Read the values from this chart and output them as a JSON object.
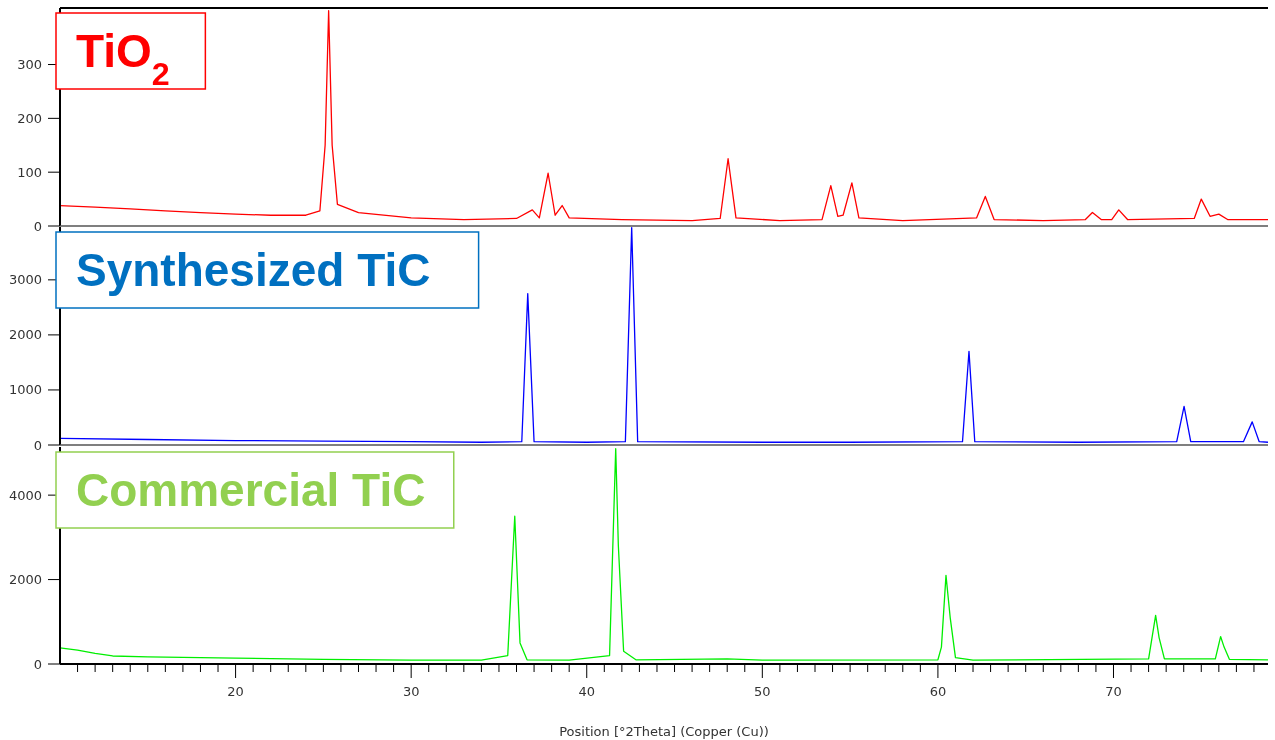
{
  "chart_data": [
    {
      "type": "line",
      "title": "TiO$_{2}$",
      "xlim": [
        10,
        78.8
      ],
      "ylim": [
        0,
        405
      ],
      "yticks": [
        0,
        100,
        200,
        300
      ],
      "grid": false,
      "tick_labels": "y",
      "series": [
        {
          "color": "#ff0000",
          "x": [
            10,
            12,
            14,
            16,
            18,
            20,
            22,
            24,
            24.8,
            25.1,
            25.3,
            25.5,
            25.8,
            27,
            30,
            33,
            36,
            36.9,
            37.3,
            37.8,
            38.2,
            38.6,
            39,
            42,
            46,
            47.6,
            48.05,
            48.5,
            51,
            53.4,
            53.9,
            54.3,
            54.6,
            55.1,
            55.5,
            58,
            62.2,
            62.7,
            63.2,
            66,
            68.4,
            68.8,
            69.3,
            69.9,
            70.3,
            70.8,
            74.6,
            75,
            75.5,
            76,
            76.5,
            78.8
          ],
          "values": [
            38,
            35,
            32,
            28,
            25,
            22,
            20,
            20,
            28,
            150,
            400,
            150,
            40,
            25,
            15,
            12,
            14,
            30,
            15,
            98,
            20,
            38,
            15,
            12,
            10,
            14,
            125,
            15,
            10,
            12,
            75,
            18,
            20,
            80,
            15,
            10,
            15,
            55,
            12,
            10,
            12,
            25,
            12,
            12,
            30,
            12,
            14,
            50,
            18,
            22,
            12,
            12
          ]
        }
      ]
    },
    {
      "type": "line",
      "title": "Synthesized TiC",
      "xlim": [
        10,
        78.8
      ],
      "ylim": [
        0,
        3960
      ],
      "yticks": [
        0,
        1000,
        2000,
        3000
      ],
      "grid": false,
      "tick_labels": "y",
      "series": [
        {
          "color": "#0000ff",
          "x": [
            10,
            15,
            20,
            25,
            30,
            34,
            36.3,
            36.64,
            37,
            40,
            42.2,
            42.56,
            42.9,
            50,
            55,
            61.4,
            61.77,
            62.1,
            68,
            73.6,
            74.02,
            74.4,
            77.4,
            77.9,
            78.3,
            78.8
          ],
          "values": [
            120,
            100,
            80,
            70,
            60,
            50,
            60,
            2750,
            60,
            50,
            60,
            3950,
            60,
            50,
            50,
            60,
            1700,
            60,
            50,
            60,
            700,
            60,
            60,
            420,
            60,
            50
          ]
        }
      ]
    },
    {
      "type": "line",
      "title": "Commercial TiC",
      "xlabel": "Position [°2Theta] (Copper (Cu))",
      "xlim": [
        10,
        78.8
      ],
      "ylim": [
        0,
        5140
      ],
      "yticks": [
        0,
        2000,
        4000
      ],
      "grid": false,
      "xticks": [
        {
          "value": 11,
          "label": null
        },
        {
          "value": 12,
          "label": null
        },
        {
          "value": 13,
          "label": null
        },
        {
          "value": 14,
          "label": null
        },
        {
          "value": 15,
          "label": null
        },
        {
          "value": 16,
          "label": null
        },
        {
          "value": 17,
          "label": null
        },
        {
          "value": 18,
          "label": null
        },
        {
          "value": 19,
          "label": null
        },
        20,
        {
          "value": 21,
          "label": null
        },
        {
          "value": 22,
          "label": null
        },
        {
          "value": 23,
          "label": null
        },
        {
          "value": 24,
          "label": null
        },
        {
          "value": 25,
          "label": null
        },
        {
          "value": 26,
          "label": null
        },
        {
          "value": 27,
          "label": null
        },
        {
          "value": 28,
          "label": null
        },
        {
          "value": 29,
          "label": null
        },
        30,
        {
          "value": 31,
          "label": null
        },
        {
          "value": 32,
          "label": null
        },
        {
          "value": 33,
          "label": null
        },
        {
          "value": 34,
          "label": null
        },
        {
          "value": 35,
          "label": null
        },
        {
          "value": 36,
          "label": null
        },
        {
          "value": 37,
          "label": null
        },
        {
          "value": 38,
          "label": null
        },
        {
          "value": 39,
          "label": null
        },
        40,
        {
          "value": 41,
          "label": null
        },
        {
          "value": 42,
          "label": null
        },
        {
          "value": 43,
          "label": null
        },
        {
          "value": 44,
          "label": null
        },
        {
          "value": 45,
          "label": null
        },
        {
          "value": 46,
          "label": null
        },
        {
          "value": 47,
          "label": null
        },
        {
          "value": 48,
          "label": null
        },
        {
          "value": 49,
          "label": null
        },
        50,
        {
          "value": 51,
          "label": null
        },
        {
          "value": 52,
          "label": null
        },
        {
          "value": 53,
          "label": null
        },
        {
          "value": 54,
          "label": null
        },
        {
          "value": 55,
          "label": null
        },
        {
          "value": 56,
          "label": null
        },
        {
          "value": 57,
          "label": null
        },
        {
          "value": 58,
          "label": null
        },
        {
          "value": 59,
          "label": null
        },
        60,
        {
          "value": 61,
          "label": null
        },
        {
          "value": 62,
          "label": null
        },
        {
          "value": 63,
          "label": null
        },
        {
          "value": 64,
          "label": null
        },
        {
          "value": 65,
          "label": null
        },
        {
          "value": 66,
          "label": null
        },
        {
          "value": 67,
          "label": null
        },
        {
          "value": 68,
          "label": null
        },
        {
          "value": 69,
          "label": null
        },
        70,
        {
          "value": 71,
          "label": null
        },
        {
          "value": 72,
          "label": null
        },
        {
          "value": 73,
          "label": null
        },
        {
          "value": 74,
          "label": null
        },
        {
          "value": 75,
          "label": null
        },
        {
          "value": 76,
          "label": null
        },
        {
          "value": 77,
          "label": null
        },
        {
          "value": 78,
          "label": null
        }
      ],
      "series": [
        {
          "color": "#00ee00",
          "x": [
            10,
            11,
            12,
            13,
            15,
            20,
            25,
            30,
            34,
            35.5,
            35.9,
            36.2,
            36.6,
            39,
            41.3,
            41.65,
            41.8,
            42.1,
            42.8,
            48,
            50,
            60,
            60.2,
            60.46,
            60.7,
            61,
            62,
            72,
            72.4,
            72.6,
            72.9,
            75.8,
            76.1,
            76.3,
            76.6,
            78.8
          ],
          "values": [
            380,
            330,
            250,
            190,
            170,
            140,
            110,
            90,
            90,
            200,
            3500,
            500,
            100,
            90,
            200,
            5100,
            2800,
            300,
            100,
            120,
            90,
            100,
            400,
            2100,
            1100,
            150,
            90,
            120,
            1150,
            620,
            120,
            120,
            650,
            400,
            110,
            100
          ]
        }
      ]
    }
  ]
}
